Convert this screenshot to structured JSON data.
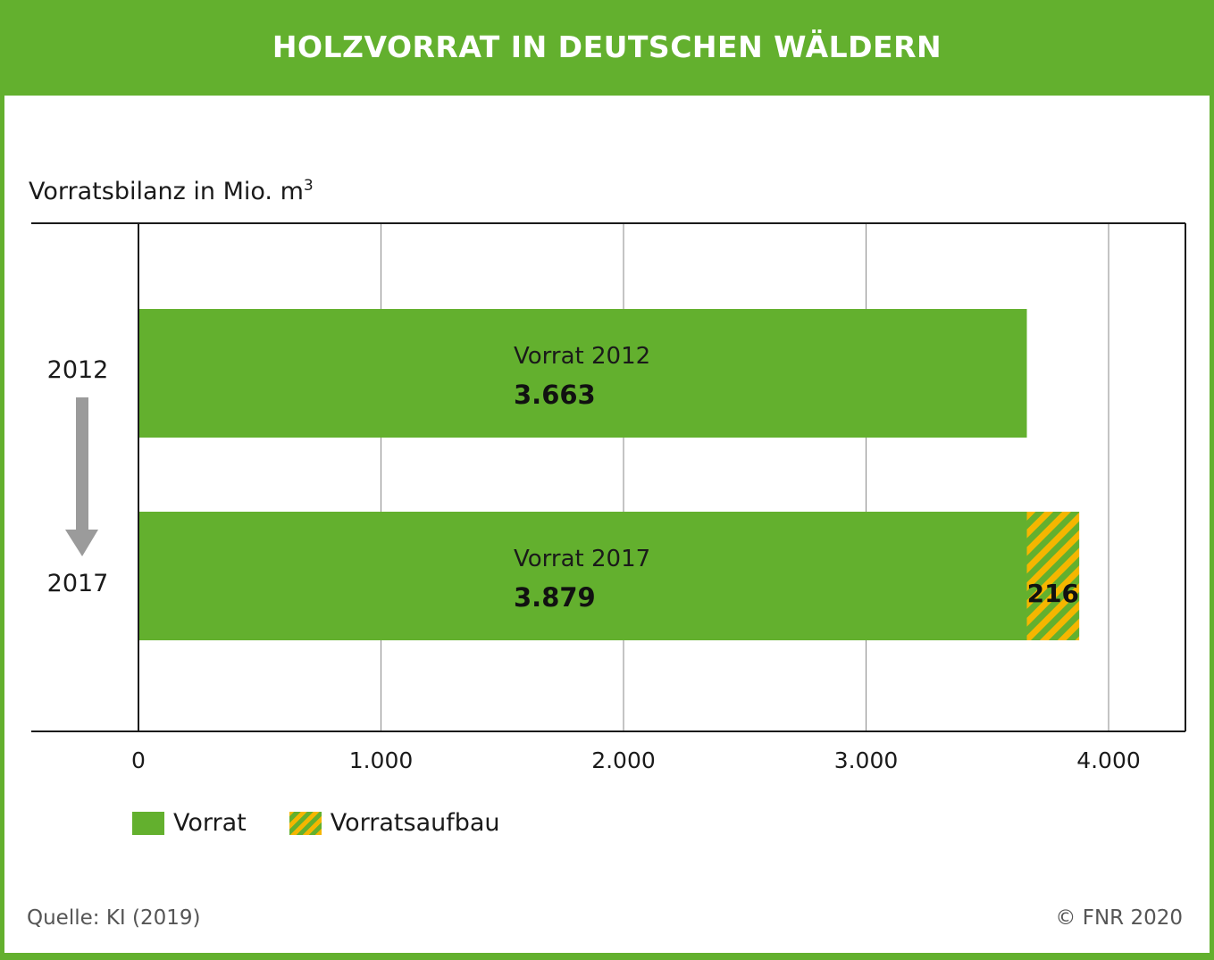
{
  "header": {
    "title": "HOLZVORRAT IN DEUTSCHEN WÄLDERN"
  },
  "unit_label": {
    "text": "Vorratsbilanz in Mio. m",
    "superscript": "3"
  },
  "footer": {
    "source": "Quelle: KI (2019)",
    "copyright": "© FNR 2020"
  },
  "colors": {
    "brand_green": "#63b02e",
    "hatch_yellow": "#f5b600",
    "arrow_gray": "#9b9b9b"
  },
  "chart_data": {
    "type": "bar",
    "orientation": "horizontal",
    "stacked": true,
    "xlabel": "",
    "ylabel": "",
    "xlim": [
      0,
      4000
    ],
    "grid": true,
    "ticks": [
      {
        "value": 0,
        "label": "0"
      },
      {
        "value": 1000,
        "label": "1.000"
      },
      {
        "value": 2000,
        "label": "2.000"
      },
      {
        "value": 3000,
        "label": "3.000"
      },
      {
        "value": 4000,
        "label": "4.000"
      }
    ],
    "categories": [
      "2012",
      "2017"
    ],
    "series": [
      {
        "name": "Vorrat",
        "values": [
          3663,
          3663
        ],
        "color": "#63b02e",
        "pattern": "solid"
      },
      {
        "name": "Vorratsaufbau",
        "values": [
          0,
          216
        ],
        "color": "#f5b600",
        "pattern": "hatch"
      }
    ],
    "bar_annotations": [
      {
        "title": "Vorrat 2012",
        "value_label": "3.663"
      },
      {
        "title": "Vorrat 2017",
        "value_label": "3.879"
      }
    ],
    "segment_labels": [
      {
        "category": "2017",
        "series": "Vorratsaufbau",
        "label": "216"
      }
    ],
    "legend": {
      "position": "bottom-left",
      "items": [
        {
          "label": "Vorrat",
          "pattern": "solid"
        },
        {
          "label": "Vorratsaufbau",
          "pattern": "hatch"
        }
      ]
    },
    "time_arrow": {
      "from": "2012",
      "to": "2017"
    }
  }
}
